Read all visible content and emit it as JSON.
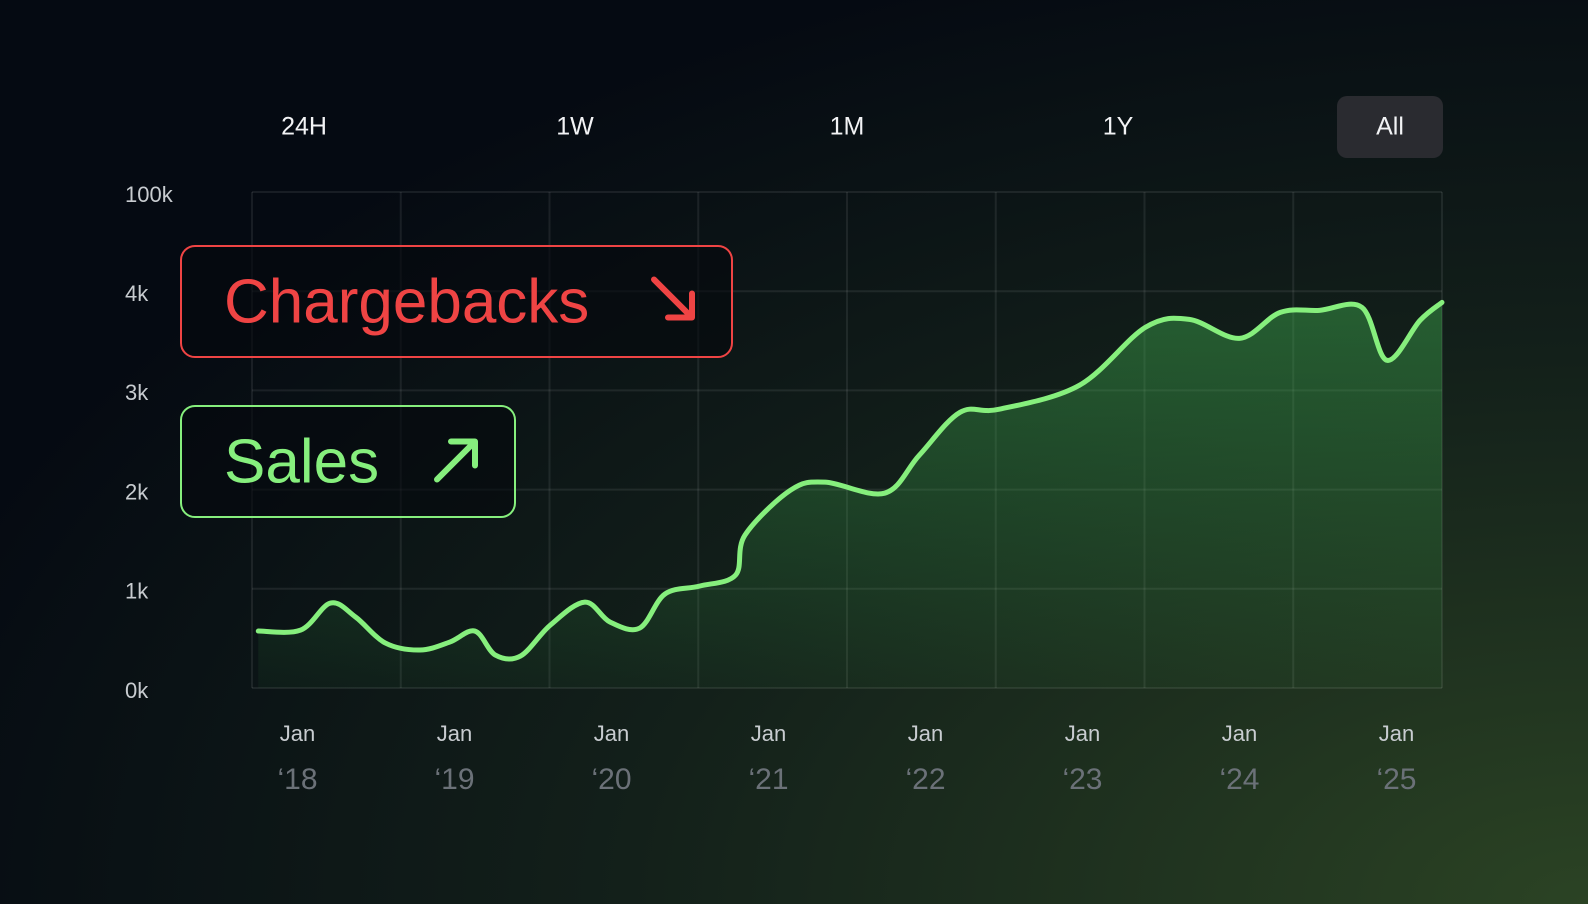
{
  "controls": {
    "ranges": [
      "24H",
      "1W",
      "1M",
      "1Y",
      "All"
    ],
    "active_index": 4
  },
  "chart_data": {
    "type": "line",
    "badges": [
      {
        "text": "Chargebacks",
        "color": "#ef4444",
        "direction": "down"
      },
      {
        "text": "Sales",
        "color": "#86ef7d",
        "direction": "up"
      }
    ],
    "x": [
      2017.75,
      2018.02,
      2018.21,
      2018.37,
      2018.56,
      2018.78,
      2018.97,
      2019.13,
      2019.26,
      2019.42,
      2019.61,
      2019.83,
      2019.99,
      2020.18,
      2020.34,
      2020.56,
      2020.79,
      2020.85,
      2021.14,
      2021.36,
      2021.74,
      2021.96,
      2022.22,
      2022.47,
      2022.98,
      2023.4,
      2023.68,
      2024.0,
      2024.26,
      2024.51,
      2024.78,
      2024.94,
      2025.15,
      2025.29
    ],
    "series": [
      {
        "color": "#86ef7d",
        "values": [
          574,
          584,
          856,
          715,
          453,
          383,
          463,
          574,
          332,
          322,
          634,
          866,
          665,
          604,
          947,
          1027,
          1138,
          1541,
          1994,
          2075,
          1964,
          2346,
          2779,
          2810,
          3051,
          3635,
          3716,
          3525,
          3787,
          3807,
          3837,
          3303,
          3706,
          3887
        ]
      }
    ],
    "xlim": [
      2017.71,
      2025.29
    ],
    "xticks": [
      {
        "value": 2018,
        "month": "Jan",
        "label": "‘18"
      },
      {
        "value": 2019,
        "month": "Jan",
        "label": "‘19"
      },
      {
        "value": 2020,
        "month": "Jan",
        "label": "‘20"
      },
      {
        "value": 2021,
        "month": "Jan",
        "label": "‘21"
      },
      {
        "value": 2022,
        "month": "Jan",
        "label": "‘22"
      },
      {
        "value": 2023,
        "month": "Jan",
        "label": "‘23"
      },
      {
        "value": 2024,
        "month": "Jan",
        "label": "‘24"
      },
      {
        "value": 2025,
        "month": "Jan",
        "label": "‘25"
      }
    ],
    "ylim": [
      0,
      100000
    ],
    "yticks": [
      {
        "value": 0,
        "label": "0k"
      },
      {
        "value": 1000,
        "label": "1k"
      },
      {
        "value": 2000,
        "label": "2k"
      },
      {
        "value": 3000,
        "label": "3k"
      },
      {
        "value": 4000,
        "label": "4k"
      },
      {
        "value": 100000,
        "label": "100k"
      }
    ],
    "grid": true
  }
}
